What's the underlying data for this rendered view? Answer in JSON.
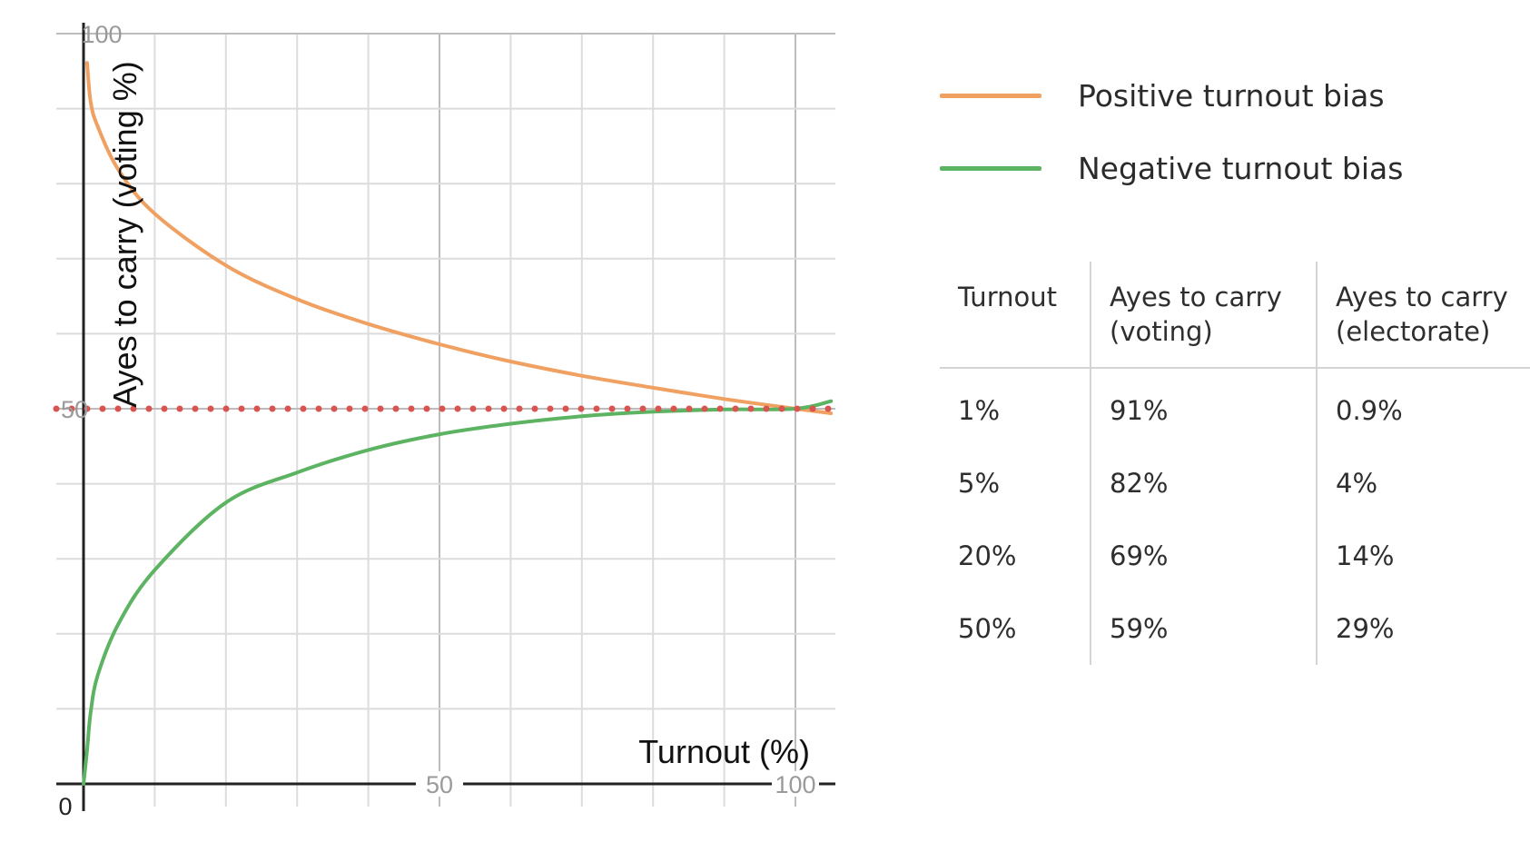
{
  "chart_data": {
    "type": "line",
    "xlabel": "Turnout (%)",
    "ylabel": "Ayes to carry (voting %)",
    "xlim": [
      0,
      105
    ],
    "ylim": [
      0,
      100
    ],
    "x_ticks": [
      {
        "value": 0,
        "label": "0"
      },
      {
        "value": 50,
        "label": "50"
      },
      {
        "value": 100,
        "label": "100"
      }
    ],
    "y_ticks": [
      {
        "value": 50,
        "label": "50"
      },
      {
        "value": 100,
        "label": "100"
      }
    ],
    "grid": true,
    "x_grid_step": 10,
    "y_grid_step": 10,
    "series": [
      {
        "name": "Positive turnout bias",
        "color": "#f0a060",
        "x": [
          0.5,
          1,
          2,
          5,
          10,
          20,
          30,
          40,
          50,
          60,
          70,
          80,
          90,
          100,
          105
        ],
        "y": [
          96.1,
          90.9,
          87.6,
          81.7,
          76.0,
          69.1,
          64.6,
          61.3,
          58.6,
          56.3,
          54.4,
          52.8,
          51.3,
          50.0,
          49.4
        ]
      },
      {
        "name": "Negative turnout bias",
        "color": "#5cb362",
        "x": [
          0,
          0.5,
          1,
          2,
          5,
          10,
          20,
          30,
          40,
          50,
          60,
          70,
          80,
          90,
          100,
          105
        ],
        "y": [
          0,
          4.5,
          9.5,
          14.5,
          21.5,
          28.5,
          37.5,
          41.5,
          44.5,
          46.6,
          48.0,
          49.0,
          49.6,
          49.9,
          50.0,
          51.0
        ]
      },
      {
        "name": "",
        "color": "#d9534f",
        "style": "dotted",
        "x": [
          0,
          105
        ],
        "y": [
          50,
          50
        ]
      }
    ],
    "legend": {
      "placement": "right",
      "entries": [
        {
          "label": "Positive turnout bias",
          "color": "#f0a060"
        },
        {
          "label": "Negative turnout bias",
          "color": "#5cb362"
        }
      ]
    },
    "table": {
      "headers": [
        [
          "Turnout"
        ],
        [
          "Ayes to carry",
          "(voting)"
        ],
        [
          "Ayes to carry",
          "(electorate)"
        ]
      ],
      "rows": [
        [
          "1%",
          "91%",
          "0.9%"
        ],
        [
          "5%",
          "82%",
          "4%"
        ],
        [
          "20%",
          "69%",
          "14%"
        ],
        [
          "50%",
          "59%",
          "29%"
        ]
      ]
    }
  }
}
